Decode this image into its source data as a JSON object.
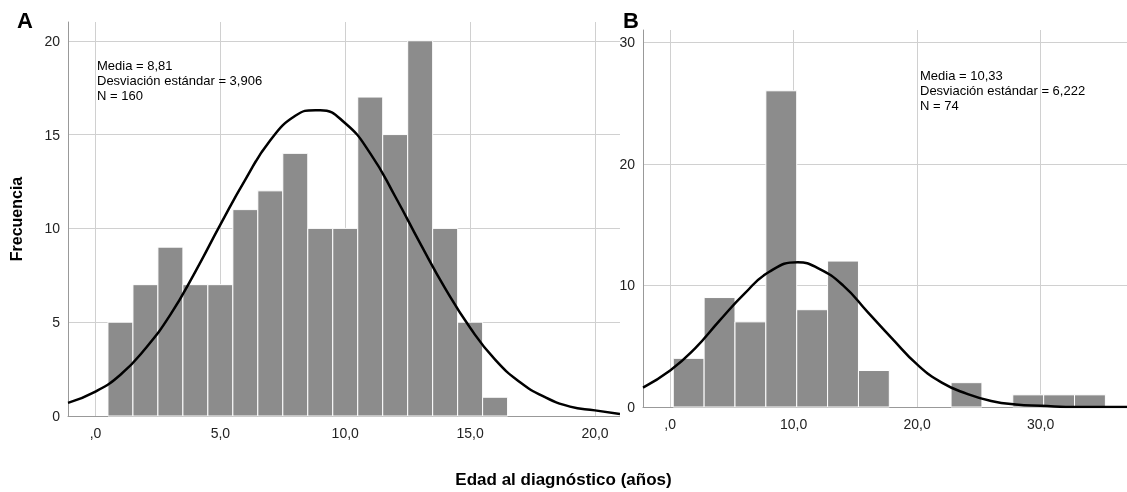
{
  "chart_data": [
    {
      "type": "histogram",
      "title": "A",
      "ylabel": "Frecuencia",
      "xlabel": "Edad al diagnóstico (años)",
      "color": "#8c8c8c",
      "bins": [
        0.5,
        1.5,
        2.5,
        3.5,
        4.5,
        5.5,
        6.5,
        7.5,
        8.5,
        9.5,
        10.5,
        11.5,
        12.5,
        13.5,
        14.5,
        15.5,
        16.5
      ],
      "values": [
        5,
        7,
        9,
        7,
        7,
        11,
        12,
        14,
        10,
        10,
        17,
        15,
        20,
        10,
        5,
        1
      ],
      "series": [
        {
          "type": "line",
          "color": "#000000",
          "x": [
            -1.1,
            0,
            1,
            2,
            3,
            4,
            5,
            6,
            7,
            8,
            8.81,
            9,
            10,
            11,
            12,
            13,
            14,
            15,
            16,
            17,
            18,
            19,
            20,
            21
          ],
          "values": [
            0.7,
            1.3,
            2.2,
            3.6,
            5.4,
            7.7,
            10.2,
            12.6,
            14.7,
            16.0,
            16.3,
            16.3,
            15.6,
            14.0,
            11.7,
            9.2,
            6.8,
            4.7,
            3.0,
            1.8,
            1.0,
            0.5,
            0.3,
            0.1
          ]
        }
      ],
      "annotations": [
        "Media = 8,81\nDesviación estándar = 3,906\nN = 160"
      ],
      "xlim": [
        -1.1,
        21
      ],
      "xticks": [
        {
          "value": 0,
          "label": ",0"
        },
        {
          "value": 5,
          "label": "5,0"
        },
        {
          "value": 10,
          "label": "10,0"
        },
        {
          "value": 15,
          "label": "15,0"
        },
        {
          "value": 20,
          "label": "20,0"
        }
      ],
      "ylim": [
        0,
        21
      ],
      "yticks": [
        0,
        5,
        10,
        15,
        20
      ],
      "grid": true,
      "line_style": "solid",
      "marker": "none"
    },
    {
      "type": "histogram",
      "title": "B",
      "color": "#8c8c8c",
      "bins": [
        0.25,
        2.75,
        5.25,
        7.75,
        10.25,
        12.75,
        15.25,
        17.75,
        20.25,
        22.75,
        25.25,
        27.75,
        30.25,
        32.75,
        35.25
      ],
      "values": [
        4,
        9,
        7,
        26,
        8,
        12,
        3,
        0,
        0,
        2,
        0,
        1,
        1,
        1
      ],
      "series": [
        {
          "type": "line",
          "color": "#000000",
          "x": [
            -2.2,
            0,
            2,
            4,
            6,
            8,
            10.33,
            12,
            14,
            16,
            18,
            20,
            22,
            24,
            26,
            28,
            30,
            33,
            37
          ],
          "values": [
            1.6,
            3.0,
            4.8,
            7.1,
            9.3,
            11.1,
            11.9,
            11.4,
            10.0,
            7.8,
            5.6,
            3.5,
            2.0,
            1.1,
            0.5,
            0.2,
            0.1,
            0,
            0
          ]
        }
      ],
      "annotations": [
        "Media = 10,33\nDesviación estándar = 6,222\nN = 74"
      ],
      "xlim": [
        -2.2,
        37
      ],
      "xticks": [
        {
          "value": 0,
          "label": ",0"
        },
        {
          "value": 10,
          "label": "10,0"
        },
        {
          "value": 20,
          "label": "20,0"
        },
        {
          "value": 30,
          "label": "30,0"
        }
      ],
      "ylim": [
        0,
        31
      ],
      "yticks": [
        0,
        10,
        20,
        30
      ],
      "grid": true,
      "line_style": "solid",
      "marker": "none"
    }
  ]
}
